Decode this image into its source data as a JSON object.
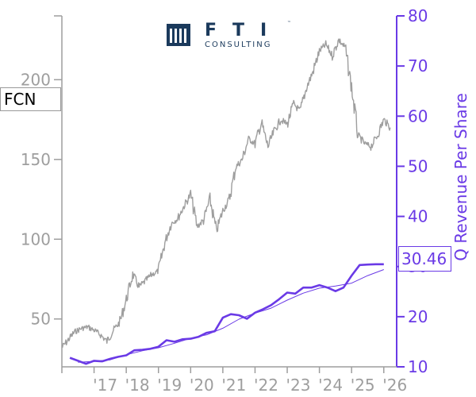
{
  "ticker": "FCN",
  "logo": {
    "main": "FTI",
    "sub": "CONSULTING",
    "tm": "™"
  },
  "last_value_label": "30.46",
  "colors": {
    "price": "#9e9e9e",
    "revenue": "#6a3ae6",
    "logo": "#1b3a5c"
  },
  "chart_data": {
    "type": "line",
    "xlabel": "",
    "ylabel_left": "",
    "ylabel_right": "Q Revenue Per Share",
    "x_ticks": [
      "'17",
      "'18",
      "'19",
      "'20",
      "'21",
      "'22",
      "'23",
      "'24",
      "'25",
      "'26"
    ],
    "y_left": {
      "lim": [
        20,
        240
      ],
      "ticks": [
        50,
        100,
        150,
        200
      ]
    },
    "y_right": {
      "lim": [
        10,
        80
      ],
      "ticks": [
        10,
        20,
        30,
        40,
        50,
        60,
        70,
        80
      ]
    },
    "xlim": [
      2016.0,
      2026.4
    ],
    "grid": false,
    "series": [
      {
        "name": "FCN",
        "axis": "left",
        "x": [
          2016.0,
          2016.2,
          2016.4,
          2016.6,
          2016.8,
          2017.0,
          2017.2,
          2017.4,
          2017.6,
          2017.8,
          2018.0,
          2018.2,
          2018.4,
          2018.6,
          2018.8,
          2019.0,
          2019.2,
          2019.4,
          2019.6,
          2019.8,
          2020.0,
          2020.2,
          2020.4,
          2020.6,
          2020.8,
          2021.0,
          2021.2,
          2021.4,
          2021.6,
          2021.8,
          2022.0,
          2022.2,
          2022.4,
          2022.6,
          2022.8,
          2023.0,
          2023.2,
          2023.4,
          2023.6,
          2023.8,
          2024.0,
          2024.2,
          2024.4,
          2024.6,
          2024.8,
          2025.0,
          2025.2,
          2025.4,
          2025.6,
          2025.8,
          2026.0,
          2026.2
        ],
        "values": [
          32,
          37,
          42,
          44,
          45,
          43,
          40,
          36,
          43,
          48,
          62,
          78,
          70,
          74,
          78,
          80,
          98,
          110,
          113,
          121,
          128,
          108,
          112,
          125,
          105,
          118,
          125,
          145,
          150,
          163,
          160,
          173,
          158,
          168,
          175,
          172,
          185,
          180,
          195,
          205,
          218,
          222,
          215,
          225,
          220,
          195,
          165,
          160,
          158,
          165,
          175,
          170
        ]
      },
      {
        "name": "Q Revenue Per Share",
        "axis": "right",
        "x": [
          2016.25,
          2016.5,
          2016.75,
          2017.0,
          2017.25,
          2017.5,
          2017.75,
          2018.0,
          2018.25,
          2018.5,
          2018.75,
          2019.0,
          2019.25,
          2019.5,
          2019.75,
          2020.0,
          2020.25,
          2020.5,
          2020.75,
          2021.0,
          2021.25,
          2021.5,
          2021.75,
          2022.0,
          2022.25,
          2022.5,
          2022.75,
          2023.0,
          2023.25,
          2023.5,
          2023.75,
          2024.0,
          2024.25,
          2024.5,
          2024.75,
          2025.0,
          2025.25,
          2025.5,
          2025.75,
          2026.0
        ],
        "values": [
          11.8,
          11.2,
          10.6,
          11.2,
          11.1,
          11.6,
          12.0,
          12.3,
          13.3,
          13.4,
          13.6,
          14.0,
          15.3,
          15.0,
          15.5,
          15.6,
          16.0,
          16.8,
          17.1,
          19.8,
          20.5,
          20.3,
          19.6,
          20.8,
          21.5,
          22.3,
          23.5,
          24.8,
          24.6,
          25.8,
          25.8,
          26.3,
          25.8,
          25.1,
          25.8,
          28.2,
          30.3,
          30.4,
          30.46,
          30.46
        ]
      },
      {
        "name": "Q Revenue Per Share (trend)",
        "axis": "right",
        "x": [
          2016.5,
          2017.0,
          2017.5,
          2018.0,
          2018.5,
          2019.0,
          2019.5,
          2020.0,
          2020.5,
          2021.0,
          2021.5,
          2022.0,
          2022.5,
          2023.0,
          2023.5,
          2024.0,
          2024.5,
          2025.0,
          2025.5,
          2026.0
        ],
        "values": [
          10.9,
          11.1,
          11.4,
          12.4,
          13.2,
          13.8,
          14.7,
          15.7,
          16.4,
          17.7,
          19.5,
          20.7,
          21.7,
          23.3,
          24.7,
          25.7,
          26.1,
          26.7,
          28.2,
          29.4
        ]
      }
    ]
  }
}
